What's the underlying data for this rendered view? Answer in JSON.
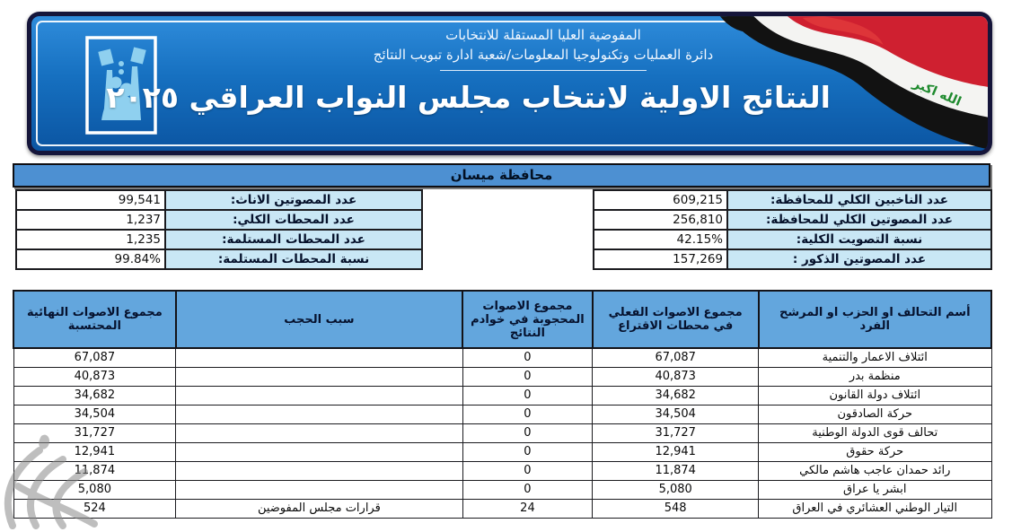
{
  "header": {
    "org_line1": "المفوضية العليا المستقلة للانتخابات",
    "org_line2": "دائرة العمليات وتكنولوجيا المعلومات/شعبة ادارة تبويب النتائج",
    "title": "النتائج الاولية لانتخاب مجلس النواب العراقي ٢٠٢٥",
    "flag_text": "الله اكبر"
  },
  "governorate_bar": {
    "title": "محافظة ميسان"
  },
  "summary": {
    "right": [
      {
        "label": "عدد الناخبين الكلي للمحافظة:",
        "value": "609,215"
      },
      {
        "label": "عدد المصوتين الكلي للمحافظة:",
        "value": "256,810"
      },
      {
        "label": "نسبة التصويت الكلية:",
        "value": "42.15%"
      },
      {
        "label": "عدد المصوتين الذكور :",
        "value": "157,269"
      }
    ],
    "left": [
      {
        "label": "عدد المصوتين الاناث:",
        "value": "99,541"
      },
      {
        "label": "عدد المحطات الكلي:",
        "value": "1,237"
      },
      {
        "label": "عدد المحطات المستلمة:",
        "value": "1,235"
      },
      {
        "label": "نسبة المحطات المستلمة:",
        "value": "99.84%"
      }
    ]
  },
  "results_table": {
    "headers": [
      "أسم التحالف او الحزب او المرشح الفرد",
      "مجموع الاصوات الفعلي في محطات الاقتراع",
      "مجموع الاصوات المحجوبة في خوادم النتائج",
      "سبب الحجب",
      "مجموع الاصوات النهائية المحتسبة"
    ],
    "rows": [
      {
        "name": "ائتلاف الاعمار والتنمية",
        "actual": "67,087",
        "withheld": "0",
        "reason": "",
        "final": "67,087"
      },
      {
        "name": "منظمة بدر",
        "actual": "40,873",
        "withheld": "0",
        "reason": "",
        "final": "40,873"
      },
      {
        "name": "ائتلاف دولة القانون",
        "actual": "34,682",
        "withheld": "0",
        "reason": "",
        "final": "34,682"
      },
      {
        "name": "حركة الصادقون",
        "actual": "34,504",
        "withheld": "0",
        "reason": "",
        "final": "34,504"
      },
      {
        "name": "تحالف قوى الدولة الوطنية",
        "actual": "31,727",
        "withheld": "0",
        "reason": "",
        "final": "31,727"
      },
      {
        "name": "حركة حقوق",
        "actual": "12,941",
        "withheld": "0",
        "reason": "",
        "final": "12,941"
      },
      {
        "name": "رائد حمدان عاجب هاشم مالكي",
        "actual": "11,874",
        "withheld": "0",
        "reason": "",
        "final": "11,874"
      },
      {
        "name": "ابشر يا عراق",
        "actual": "5,080",
        "withheld": "0",
        "reason": "",
        "final": "5,080"
      },
      {
        "name": "التيار الوطني العشائري في العراق",
        "actual": "548",
        "withheld": "24",
        "reason": "قرارات مجلس المفوضين",
        "final": "524"
      }
    ]
  },
  "icons": {
    "logo": "ihec-ballot-box-logo",
    "flag": "iraq-flag",
    "watermark": "news-agency-watermark"
  },
  "colors": {
    "banner_blue": "#1670c0",
    "banner_frame": "#15153a",
    "governorate_bar_blue": "#4d90d2",
    "table_header_blue": "#63a6dd",
    "summary_label_blue": "#c9e7f5",
    "flag_red": "#cf2030",
    "flag_green": "#1e8a2e",
    "flag_black": "#121212"
  }
}
